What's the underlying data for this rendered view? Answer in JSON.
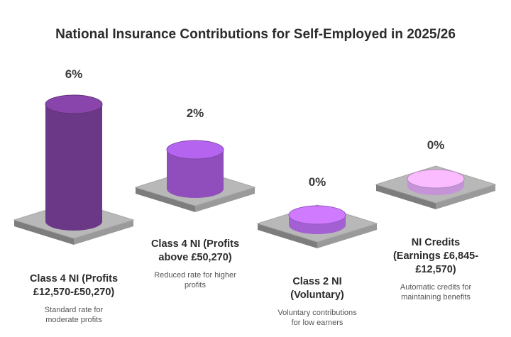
{
  "chart_data": {
    "type": "bar",
    "title": "National Insurance Contributions for Self-Employed in 2025/26",
    "unit": "%",
    "categories": [
      {
        "lines": [
          "Class 4 NI (Profits",
          "£12,570-£50,270)"
        ],
        "description": [
          "Standard rate for",
          "moderate profits"
        ],
        "value_label": "6%",
        "value": 6,
        "color": "#7a3e99"
      },
      {
        "lines": [
          "Class 4 NI (Profits",
          "above £50,270)"
        ],
        "description": [
          "Reduced rate for higher",
          "profits"
        ],
        "value_label": "2%",
        "value": 2,
        "color": "#a259d6"
      },
      {
        "lines": [
          "Class 2 NI",
          "(Voluntary)"
        ],
        "description": [
          "Voluntary contributions",
          "for low earners"
        ],
        "value_label": "0%",
        "value": 0,
        "color": "#b96df0"
      },
      {
        "lines": [
          "NI Credits",
          "(Earnings £6,845-",
          "£12,570)"
        ],
        "description": [
          "Automatic credits for",
          "maintaining benefits"
        ],
        "value_label": "0%",
        "value": 0,
        "color": "#e0a8f5"
      }
    ]
  }
}
